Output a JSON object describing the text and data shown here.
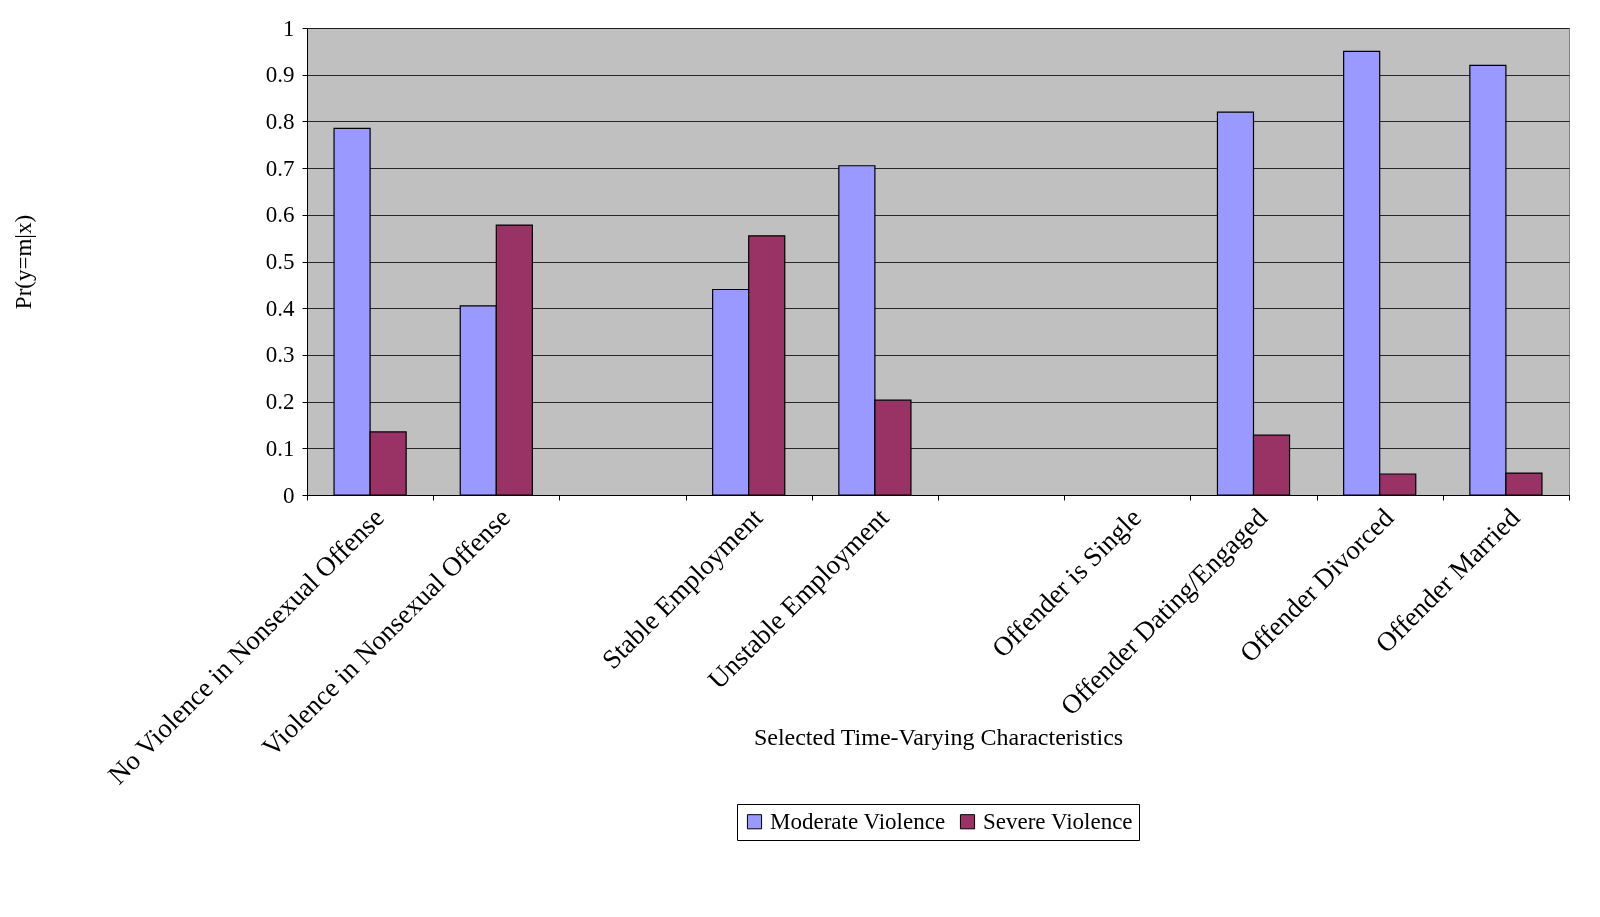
{
  "chart_data": {
    "type": "bar",
    "xlabel": "Selected Time-Varying Characteristics",
    "ylabel": "Pr(y=m|x)",
    "categories": [
      "No Violence in Nonsexual Offense",
      "Violence in Nonsexual Offense",
      null,
      "Stable Employment",
      "Unstable Employment",
      null,
      "Offender is Single",
      "Offender Dating/Engaged",
      "Offender Divorced",
      "Offender Married"
    ],
    "series": [
      {
        "name": "Moderate Violence",
        "color": "#9999ff",
        "values": [
          0.785,
          0.405,
          null,
          0.44,
          0.705,
          null,
          null,
          0.82,
          0.95,
          0.92
        ]
      },
      {
        "name": "Severe Violence",
        "color": "#993366",
        "values": [
          0.135,
          0.578,
          null,
          0.555,
          0.203,
          null,
          null,
          0.128,
          0.045,
          0.047
        ]
      }
    ],
    "ylim": [
      0,
      1
    ],
    "yticks": [
      0,
      0.1,
      0.2,
      0.3,
      0.4,
      0.5,
      0.6,
      0.7,
      0.8,
      0.9,
      1
    ],
    "grid": "y",
    "legend": "bottom"
  }
}
